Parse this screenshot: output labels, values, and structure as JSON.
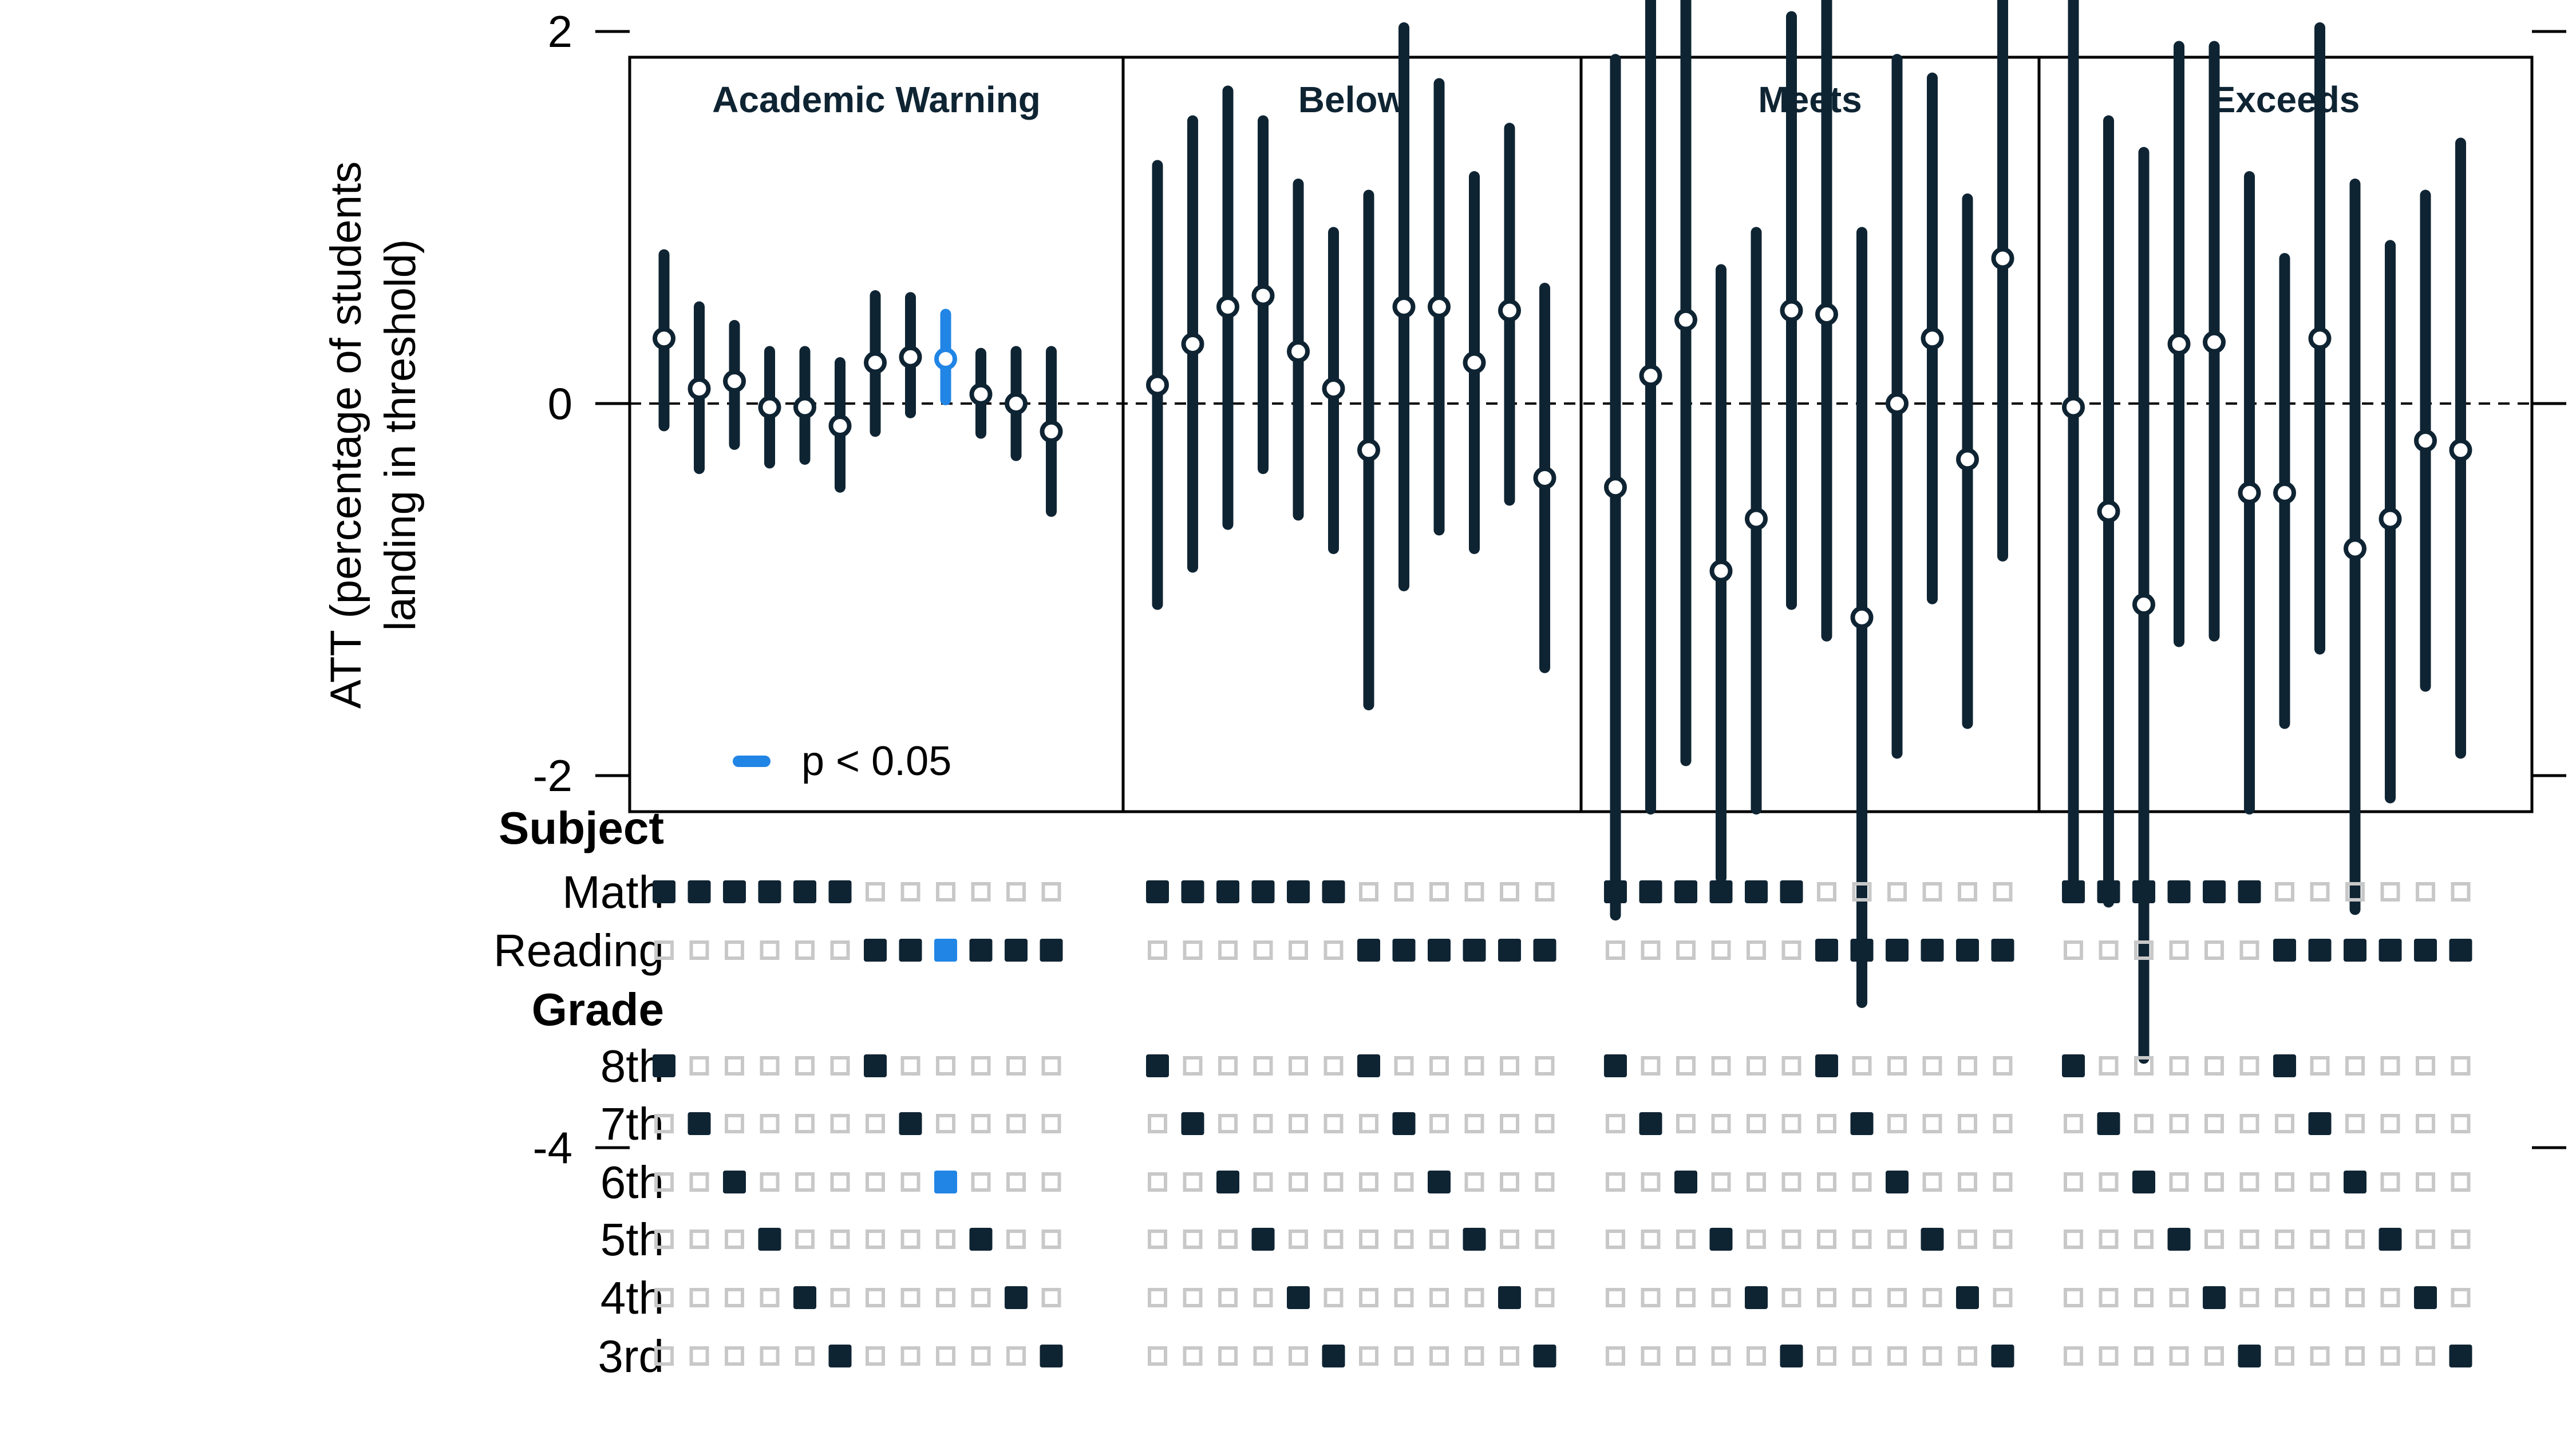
{
  "chart_data": {
    "type": "scatter",
    "description": "Point estimates with confidence intervals, faceted by threshold, with an indicator matrix below",
    "ylabel_line1": "ATT (percentage of students",
    "ylabel_line2": "landing in threshold)",
    "ylim": [
      -4.4,
      3.7
    ],
    "yticks": [
      -4,
      -2,
      0,
      2
    ],
    "ytick_labels": [
      "-4",
      "-2",
      "0",
      "2"
    ],
    "reference_line": 0,
    "legend": {
      "label": "p < 0.05",
      "placement": "bottom-left of first panel"
    },
    "colors": {
      "default": "#0f2433",
      "significant": "#2185e5",
      "empty_box": "#c8c8c8"
    },
    "facets": [
      {
        "title": "Academic Warning",
        "points": [
          {
            "est": 0.35,
            "lo": -0.12,
            "hi": 0.8
          },
          {
            "est": 0.08,
            "lo": -0.35,
            "hi": 0.52
          },
          {
            "est": 0.12,
            "lo": -0.22,
            "hi": 0.42
          },
          {
            "est": -0.02,
            "lo": -0.32,
            "hi": 0.28
          },
          {
            "est": -0.02,
            "lo": -0.3,
            "hi": 0.28
          },
          {
            "est": -0.12,
            "lo": -0.45,
            "hi": 0.22
          },
          {
            "est": 0.22,
            "lo": -0.15,
            "hi": 0.58
          },
          {
            "est": 0.25,
            "lo": -0.05,
            "hi": 0.57
          },
          {
            "est": 0.24,
            "lo": 0.02,
            "hi": 0.48,
            "sig": true
          },
          {
            "est": 0.05,
            "lo": -0.16,
            "hi": 0.27
          },
          {
            "est": 0.0,
            "lo": -0.28,
            "hi": 0.28
          },
          {
            "est": -0.15,
            "lo": -0.58,
            "hi": 0.28
          }
        ]
      },
      {
        "title": "Below",
        "points": [
          {
            "est": 0.1,
            "lo": -1.08,
            "hi": 1.28
          },
          {
            "est": 0.32,
            "lo": -0.88,
            "hi": 1.52
          },
          {
            "est": 0.52,
            "lo": -0.65,
            "hi": 1.68
          },
          {
            "est": 0.58,
            "lo": -0.35,
            "hi": 1.52
          },
          {
            "est": 0.28,
            "lo": -0.6,
            "hi": 1.18
          },
          {
            "est": 0.08,
            "lo": -0.78,
            "hi": 0.92
          },
          {
            "est": -0.25,
            "lo": -1.62,
            "hi": 1.12
          },
          {
            "est": 0.52,
            "lo": -0.98,
            "hi": 2.02
          },
          {
            "est": 0.52,
            "lo": -0.68,
            "hi": 1.72
          },
          {
            "est": 0.22,
            "lo": -0.78,
            "hi": 1.22
          },
          {
            "est": 0.5,
            "lo": -0.52,
            "hi": 1.48
          },
          {
            "est": -0.4,
            "lo": -1.42,
            "hi": 0.62
          }
        ]
      },
      {
        "title": "Meets",
        "points": [
          {
            "est": -0.45,
            "lo": -2.75,
            "hi": 1.85
          },
          {
            "est": 0.15,
            "lo": -2.18,
            "hi": 2.48
          },
          {
            "est": 0.45,
            "lo": -1.92,
            "hi": 2.82
          },
          {
            "est": -0.9,
            "lo": -2.55,
            "hi": 0.72
          },
          {
            "est": -0.62,
            "lo": -2.18,
            "hi": 0.92
          },
          {
            "est": 0.5,
            "lo": -1.08,
            "hi": 2.08
          },
          {
            "est": 0.48,
            "lo": -1.25,
            "hi": 2.2
          },
          {
            "est": -1.15,
            "lo": -3.22,
            "hi": 0.92
          },
          {
            "est": 0.0,
            "lo": -1.88,
            "hi": 1.85
          },
          {
            "est": 0.35,
            "lo": -1.05,
            "hi": 1.75
          },
          {
            "est": -0.3,
            "lo": -1.72,
            "hi": 1.1
          },
          {
            "est": 0.78,
            "lo": -0.82,
            "hi": 2.38
          }
        ]
      },
      {
        "title": "Exceeds",
        "points": [
          {
            "est": -0.02,
            "lo": -2.6,
            "hi": 2.55
          },
          {
            "est": -0.58,
            "lo": -2.68,
            "hi": 1.52
          },
          {
            "est": -1.08,
            "lo": -3.52,
            "hi": 1.35
          },
          {
            "est": 0.32,
            "lo": -1.28,
            "hi": 1.92
          },
          {
            "est": 0.33,
            "lo": -1.25,
            "hi": 1.92
          },
          {
            "est": -0.48,
            "lo": -2.18,
            "hi": 1.22
          },
          {
            "est": -0.48,
            "lo": -1.72,
            "hi": 0.78
          },
          {
            "est": 0.35,
            "lo": -1.32,
            "hi": 2.02
          },
          {
            "est": -0.78,
            "lo": -2.72,
            "hi": 1.18
          },
          {
            "est": -0.62,
            "lo": -2.12,
            "hi": 0.85
          },
          {
            "est": -0.2,
            "lo": -1.52,
            "hi": 1.12
          },
          {
            "est": -0.25,
            "lo": -1.88,
            "hi": 1.4
          }
        ]
      }
    ],
    "matrix": {
      "sections": [
        {
          "title": "Subject",
          "rows": [
            {
              "label": "Math",
              "active": [
                0,
                1,
                2,
                3,
                4,
                5
              ]
            },
            {
              "label": "Reading",
              "active": [
                6,
                7,
                8,
                9,
                10,
                11
              ]
            }
          ]
        },
        {
          "title": "Grade",
          "rows": [
            {
              "label": "8th",
              "active": [
                0,
                6
              ]
            },
            {
              "label": "7th",
              "active": [
                1,
                7
              ]
            },
            {
              "label": "6th",
              "active": [
                2,
                8
              ]
            },
            {
              "label": "5th",
              "active": [
                3,
                9
              ]
            },
            {
              "label": "4th",
              "active": [
                4,
                10
              ]
            },
            {
              "label": "3rd",
              "active": [
                5,
                11
              ]
            }
          ]
        }
      ],
      "highlight": {
        "facet": 0,
        "column": 8
      }
    }
  }
}
